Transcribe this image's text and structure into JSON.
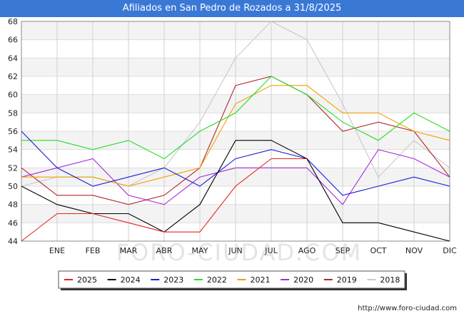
{
  "chart_data": {
    "type": "line",
    "title": "Afiliados en San Pedro de Rozados a 31/8/2025",
    "categories": [
      "",
      "ENE",
      "FEB",
      "MAR",
      "ABR",
      "MAY",
      "JUN",
      "JUL",
      "AGO",
      "SEP",
      "OCT",
      "NOV",
      "DIC"
    ],
    "ylim": [
      44,
      68
    ],
    "yticks": [
      44,
      46,
      48,
      50,
      52,
      54,
      56,
      58,
      60,
      62,
      64,
      66,
      68
    ],
    "grid": true,
    "legend_position": "bottom",
    "series": [
      {
        "name": "2025",
        "color": "#e8231f",
        "values": [
          44,
          47,
          47,
          46,
          45,
          45,
          50,
          53,
          53,
          null,
          null,
          null,
          null
        ]
      },
      {
        "name": "2024",
        "color": "#000000",
        "values": [
          50,
          48,
          47,
          47,
          45,
          48,
          55,
          55,
          53,
          46,
          46,
          45,
          44
        ]
      },
      {
        "name": "2023",
        "color": "#1c1cd6",
        "values": [
          56,
          52,
          50,
          51,
          52,
          50,
          53,
          54,
          53,
          49,
          50,
          51,
          50
        ]
      },
      {
        "name": "2022",
        "color": "#22dd22",
        "values": [
          55,
          55,
          54,
          55,
          53,
          56,
          58,
          62,
          60,
          57,
          55,
          58,
          56
        ]
      },
      {
        "name": "2021",
        "color": "#f0a000",
        "values": [
          51,
          51,
          51,
          50,
          51,
          52,
          59,
          61,
          61,
          58,
          58,
          56,
          55
        ]
      },
      {
        "name": "2020",
        "color": "#a62ad6",
        "values": [
          51,
          52,
          53,
          49,
          48,
          51,
          52,
          52,
          52,
          48,
          54,
          53,
          51
        ]
      },
      {
        "name": "2019",
        "color": "#b0262a",
        "values": [
          52,
          49,
          49,
          48,
          49,
          52,
          61,
          62,
          60,
          56,
          57,
          56,
          51
        ]
      },
      {
        "name": "2018",
        "color": "#c8c8c8",
        "values": [
          50,
          51,
          51,
          50,
          52,
          57,
          64,
          68,
          66,
          59,
          51,
          55,
          52
        ]
      }
    ],
    "watermark": "FORO-CIUDAD.COM"
  },
  "source_text": "http://www.foro-ciudad.com"
}
